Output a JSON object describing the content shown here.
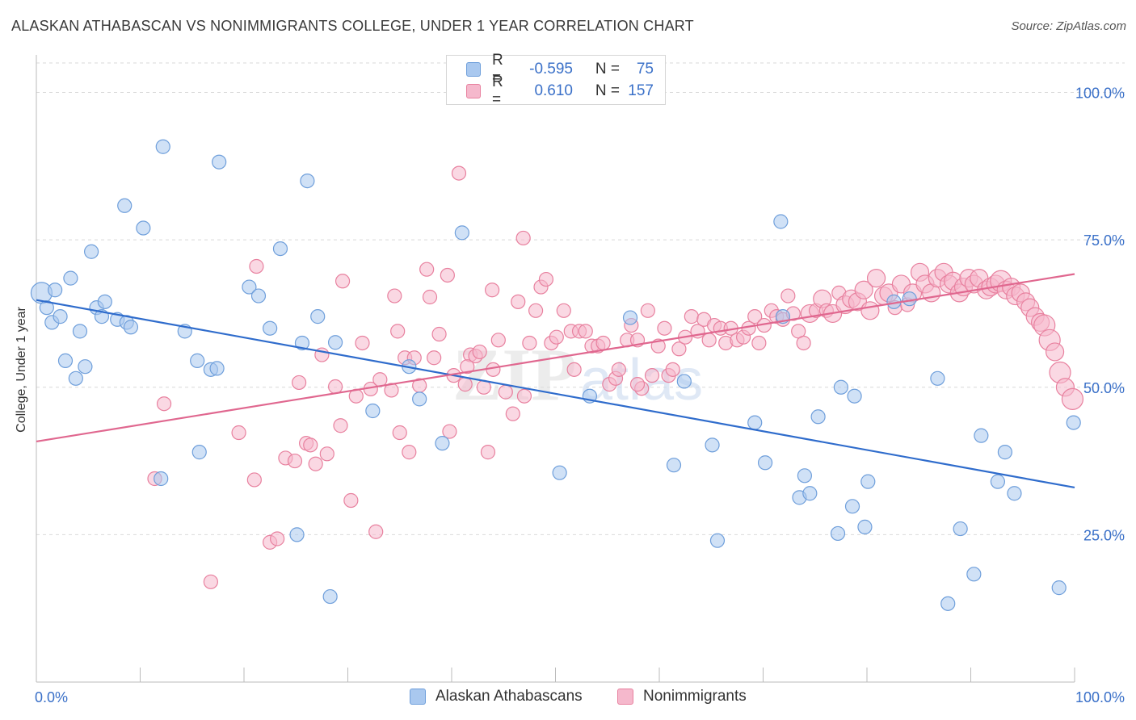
{
  "header": {
    "title": "ALASKAN ATHABASCAN VS NONIMMIGRANTS COLLEGE, UNDER 1 YEAR CORRELATION CHART",
    "source": "Source: ZipAtlas.com"
  },
  "legend_top": {
    "rows": [
      {
        "r_label": "R =",
        "r_value": "-0.595",
        "n_label": "N =",
        "n_value": "75"
      },
      {
        "r_label": "R =",
        "r_value": "0.610",
        "n_label": "N =",
        "n_value": "157"
      }
    ]
  },
  "legend_bottom": {
    "items": [
      "Alaskan Athabascans",
      "Nonimmigrants"
    ]
  },
  "colors": {
    "blue_fill": "#a9c8ef",
    "blue_stroke": "#6f9fdb",
    "blue_line": "#2f6ccc",
    "pink_fill": "#f5b8cc",
    "pink_stroke": "#e8819f",
    "pink_line": "#e0678f",
    "tick_text": "#3a70c8",
    "grid": "#d9d9d9"
  },
  "chart_data": {
    "type": "scatter",
    "title": "ALASKAN ATHABASCAN VS NONIMMIGRANTS COLLEGE, UNDER 1 YEAR CORRELATION CHART",
    "xlabel": "",
    "ylabel": "College, Under 1 year",
    "xlim": [
      0,
      100
    ],
    "ylim": [
      0,
      105
    ],
    "x_tick_labels": [
      "0.0%",
      "100.0%"
    ],
    "y_ticks": [
      25,
      50,
      75,
      100
    ],
    "y_tick_labels": [
      "25.0%",
      "50.0%",
      "75.0%",
      "100.0%"
    ],
    "grid": "horizontal dashed",
    "watermark": "ZIPatlas",
    "series": [
      {
        "name": "Alaskan Athabascans",
        "r": -0.595,
        "n": 75,
        "trend": {
          "x": [
            0,
            100
          ],
          "y": [
            64.8,
            33.0
          ]
        },
        "points": [
          [
            0.5,
            66,
            3
          ],
          [
            1,
            63.5,
            1
          ],
          [
            1.5,
            61,
            1
          ],
          [
            1.8,
            66.5,
            1
          ],
          [
            2.3,
            62,
            1
          ],
          [
            2.8,
            54.5,
            1
          ],
          [
            3.3,
            68.5,
            1
          ],
          [
            3.8,
            51.5,
            1
          ],
          [
            4.2,
            59.5,
            1
          ],
          [
            4.7,
            53.5,
            1
          ],
          [
            5.3,
            73,
            1
          ],
          [
            5.8,
            63.5,
            1
          ],
          [
            6.3,
            62,
            1
          ],
          [
            6.6,
            64.5,
            1
          ],
          [
            7.8,
            61.5,
            1
          ],
          [
            8.7,
            61,
            1
          ],
          [
            9.1,
            60.2,
            1
          ],
          [
            8.5,
            80.8,
            1
          ],
          [
            10.3,
            77,
            1
          ],
          [
            12.2,
            90.8,
            1
          ],
          [
            12,
            34.5,
            1
          ],
          [
            14.3,
            59.5,
            1
          ],
          [
            15.5,
            54.5,
            1
          ],
          [
            15.7,
            39,
            1
          ],
          [
            16.8,
            53,
            1
          ],
          [
            17.4,
            53.2,
            1
          ],
          [
            17.6,
            88.2,
            1
          ],
          [
            20.5,
            67,
            1
          ],
          [
            21.4,
            65.5,
            1
          ],
          [
            22.5,
            60,
            1
          ],
          [
            23.5,
            73.5,
            1
          ],
          [
            25.1,
            25,
            1
          ],
          [
            25.6,
            57.5,
            1
          ],
          [
            26.1,
            85,
            1
          ],
          [
            27.1,
            62,
            1
          ],
          [
            28.3,
            14.5,
            1
          ],
          [
            28.8,
            57.6,
            1
          ],
          [
            32.4,
            46,
            1
          ],
          [
            35.9,
            53.5,
            1
          ],
          [
            36.9,
            48,
            1
          ],
          [
            39.1,
            40.5,
            1
          ],
          [
            41,
            76.2,
            1
          ],
          [
            50.4,
            35.5,
            1
          ],
          [
            53.3,
            48.5,
            1
          ],
          [
            57.2,
            61.8,
            1
          ],
          [
            61.4,
            36.8,
            1
          ],
          [
            62.4,
            51,
            1
          ],
          [
            65.1,
            40.2,
            1
          ],
          [
            65.6,
            24,
            1
          ],
          [
            69.2,
            44,
            1
          ],
          [
            70.2,
            37.2,
            1
          ],
          [
            71.7,
            78.1,
            1
          ],
          [
            71.9,
            62,
            1
          ],
          [
            73.5,
            31.3,
            1
          ],
          [
            74,
            35,
            1
          ],
          [
            74.5,
            32,
            1
          ],
          [
            75.3,
            45,
            1
          ],
          [
            77.2,
            25.2,
            1
          ],
          [
            77.5,
            50,
            1
          ],
          [
            78.6,
            29.8,
            1
          ],
          [
            78.8,
            48.5,
            1
          ],
          [
            79.8,
            26.3,
            1
          ],
          [
            80.1,
            34,
            1
          ],
          [
            82.6,
            64.5,
            1
          ],
          [
            84.1,
            65,
            1
          ],
          [
            86.8,
            51.5,
            1
          ],
          [
            87.8,
            13.3,
            1
          ],
          [
            89,
            26,
            1
          ],
          [
            90.3,
            18.3,
            1
          ],
          [
            91,
            41.8,
            1
          ],
          [
            92.6,
            34,
            1
          ],
          [
            93.3,
            39,
            1
          ],
          [
            94.2,
            32,
            1
          ],
          [
            98.5,
            16,
            1
          ],
          [
            99.9,
            44,
            1
          ]
        ]
      },
      {
        "name": "Nonimmigrants",
        "r": 0.61,
        "n": 157,
        "trend": {
          "x": [
            0,
            100
          ],
          "y": [
            40.8,
            69.2
          ]
        },
        "points": [
          [
            11.4,
            34.5,
            1
          ],
          [
            12.3,
            47.2,
            1
          ],
          [
            16.8,
            17,
            1
          ],
          [
            19.5,
            42.3,
            1
          ],
          [
            21,
            34.3,
            1
          ],
          [
            21.2,
            70.5,
            1
          ],
          [
            22.5,
            23.7,
            1
          ],
          [
            23.2,
            24.3,
            1
          ],
          [
            24,
            38,
            1
          ],
          [
            24.9,
            37.5,
            1
          ],
          [
            25.3,
            50.8,
            1
          ],
          [
            26,
            40.5,
            1
          ],
          [
            26.4,
            40.2,
            1
          ],
          [
            26.9,
            37,
            1
          ],
          [
            27.5,
            55.5,
            1
          ],
          [
            28,
            38.7,
            1
          ],
          [
            28.8,
            50.1,
            1
          ],
          [
            29.3,
            43.5,
            1
          ],
          [
            29.5,
            68,
            1
          ],
          [
            30.3,
            30.8,
            1
          ],
          [
            30.8,
            48.5,
            1
          ],
          [
            31.4,
            57.5,
            1
          ],
          [
            32.2,
            49.7,
            1
          ],
          [
            32.7,
            25.5,
            1
          ],
          [
            33.1,
            51.3,
            1
          ],
          [
            34.2,
            49.5,
            1
          ],
          [
            34.5,
            65.5,
            1
          ],
          [
            35,
            42.3,
            1
          ],
          [
            35.5,
            55,
            1
          ],
          [
            35.9,
            39,
            1
          ],
          [
            36.4,
            55,
            1
          ],
          [
            36.9,
            50.3,
            1
          ],
          [
            37.6,
            70,
            1
          ],
          [
            37.9,
            65.3,
            1
          ],
          [
            38.3,
            55,
            1
          ],
          [
            38.8,
            59,
            1
          ],
          [
            39.6,
            69,
            1
          ],
          [
            39.8,
            42.5,
            1
          ],
          [
            40.2,
            52,
            1
          ],
          [
            40.7,
            86.3,
            1
          ],
          [
            41.3,
            50.5,
            1
          ],
          [
            41.8,
            55.5,
            1
          ],
          [
            42.3,
            55.3,
            1
          ],
          [
            42.7,
            56,
            1
          ],
          [
            43.1,
            50,
            1
          ],
          [
            43.5,
            39,
            1
          ],
          [
            43.9,
            66.5,
            1
          ],
          [
            44.5,
            58,
            1
          ],
          [
            45.2,
            49.2,
            1
          ],
          [
            45.9,
            45.5,
            1
          ],
          [
            46.4,
            64.5,
            1
          ],
          [
            46.9,
            75.3,
            1
          ],
          [
            47.5,
            57.5,
            1
          ],
          [
            48.1,
            63,
            1
          ],
          [
            48.6,
            67,
            1
          ],
          [
            49.1,
            68.3,
            1
          ],
          [
            49.6,
            57.5,
            1
          ],
          [
            50.1,
            58.5,
            1
          ],
          [
            50.8,
            63,
            1
          ],
          [
            51.5,
            59.5,
            1
          ],
          [
            51.8,
            53,
            1
          ],
          [
            52.3,
            59.5,
            1
          ],
          [
            52.9,
            59.5,
            1
          ],
          [
            53.5,
            57,
            1
          ],
          [
            54.1,
            57,
            1
          ],
          [
            54.6,
            57.5,
            1
          ],
          [
            55.2,
            50.5,
            1
          ],
          [
            55.8,
            51.5,
            1
          ],
          [
            56.1,
            53,
            1
          ],
          [
            56.9,
            58,
            1
          ],
          [
            57.3,
            60.5,
            1
          ],
          [
            57.9,
            58,
            1
          ],
          [
            58.3,
            49.8,
            1
          ],
          [
            58.9,
            63,
            1
          ],
          [
            59.3,
            52,
            1
          ],
          [
            59.9,
            57,
            1
          ],
          [
            60.5,
            60,
            1
          ],
          [
            60.9,
            52,
            1
          ],
          [
            61.3,
            53,
            1
          ],
          [
            61.9,
            56.5,
            1
          ],
          [
            62.5,
            58.5,
            1
          ],
          [
            63.1,
            62,
            1
          ],
          [
            63.7,
            59.5,
            1
          ],
          [
            64.3,
            61.5,
            1
          ],
          [
            64.8,
            58,
            1
          ],
          [
            65.3,
            60.5,
            1
          ],
          [
            65.9,
            60,
            1
          ],
          [
            66.4,
            57.5,
            1
          ],
          [
            66.9,
            60,
            1
          ],
          [
            67.5,
            58,
            1
          ],
          [
            68.1,
            58.5,
            1
          ],
          [
            68.6,
            60,
            1
          ],
          [
            69.2,
            62,
            1
          ],
          [
            69.6,
            57.5,
            1
          ],
          [
            70.1,
            60.5,
            1
          ],
          [
            70.8,
            63,
            1
          ],
          [
            71.3,
            62,
            1
          ],
          [
            71.9,
            61.5,
            1
          ],
          [
            72.4,
            65.5,
            1
          ],
          [
            72.9,
            62.5,
            1
          ],
          [
            73.4,
            59.5,
            1
          ],
          [
            73.9,
            57.5,
            1
          ],
          [
            74.5,
            62.5,
            2
          ],
          [
            75.1,
            63,
            1
          ],
          [
            75.7,
            65,
            2
          ],
          [
            76.1,
            63,
            1
          ],
          [
            76.7,
            62.5,
            2
          ],
          [
            77.3,
            66,
            1
          ],
          [
            77.9,
            64,
            2
          ],
          [
            78.5,
            65,
            2
          ],
          [
            79.1,
            64.5,
            2
          ],
          [
            79.7,
            66.5,
            2
          ],
          [
            80.3,
            63,
            2
          ],
          [
            80.9,
            68.5,
            2
          ],
          [
            81.6,
            65.5,
            2
          ],
          [
            82.1,
            66,
            2
          ],
          [
            82.7,
            63.5,
            1
          ],
          [
            83.3,
            67.5,
            2
          ],
          [
            83.9,
            64,
            1
          ],
          [
            84.4,
            66,
            2
          ],
          [
            85.1,
            69.5,
            2
          ],
          [
            85.6,
            67.5,
            2
          ],
          [
            86.2,
            66,
            2
          ],
          [
            86.8,
            68.5,
            2
          ],
          [
            87.4,
            69.5,
            2
          ],
          [
            87.9,
            67.5,
            2
          ],
          [
            88.3,
            68,
            2
          ],
          [
            88.9,
            66,
            2
          ],
          [
            89.3,
            67,
            2
          ],
          [
            89.8,
            68.5,
            2
          ],
          [
            90.3,
            67.5,
            2
          ],
          [
            90.8,
            68.5,
            2
          ],
          [
            91.5,
            66.5,
            2
          ],
          [
            91.9,
            67,
            2
          ],
          [
            92.4,
            67.5,
            2
          ],
          [
            92.9,
            68,
            3
          ],
          [
            93.4,
            66.5,
            2
          ],
          [
            93.9,
            67,
            2
          ],
          [
            94.3,
            65.5,
            2
          ],
          [
            94.8,
            66,
            2
          ],
          [
            95.3,
            64.5,
            2
          ],
          [
            95.7,
            63.5,
            2
          ],
          [
            96.2,
            62,
            2
          ],
          [
            96.7,
            61,
            2
          ],
          [
            97.1,
            60.5,
            3
          ],
          [
            97.6,
            58,
            3
          ],
          [
            98.1,
            56,
            2
          ],
          [
            98.6,
            52.5,
            3
          ],
          [
            99.1,
            50,
            2
          ],
          [
            99.8,
            48,
            3
          ],
          [
            41.5,
            53.5,
            1
          ],
          [
            44,
            53,
            1
          ],
          [
            47,
            48.5,
            1
          ],
          [
            34.8,
            59.5,
            1
          ],
          [
            57.9,
            50.5,
            1
          ]
        ]
      }
    ]
  }
}
